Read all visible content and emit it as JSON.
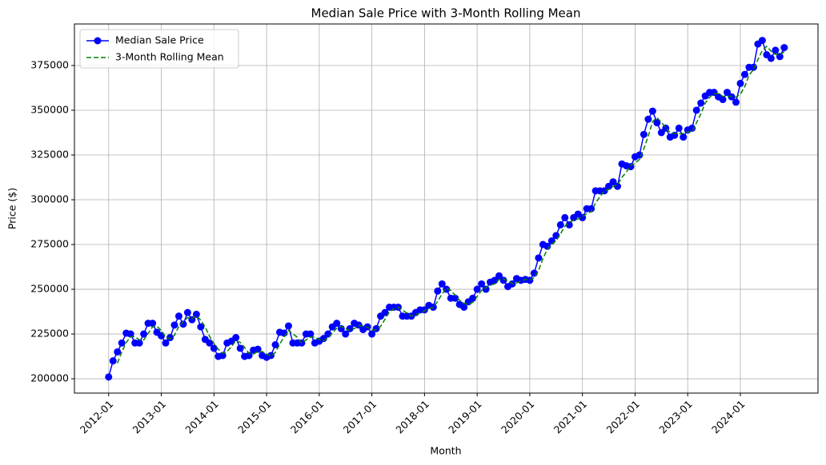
{
  "chart_data": {
    "type": "line",
    "title": "Median Sale Price with 3-Month Rolling Mean",
    "x_label": "Month",
    "y_label": "Price ($)",
    "x": [
      "2012-01",
      "2012-02",
      "2012-03",
      "2012-04",
      "2012-05",
      "2012-06",
      "2012-07",
      "2012-08",
      "2012-09",
      "2012-10",
      "2012-11",
      "2012-12",
      "2013-01",
      "2013-02",
      "2013-03",
      "2013-04",
      "2013-05",
      "2013-06",
      "2013-07",
      "2013-08",
      "2013-09",
      "2013-10",
      "2013-11",
      "2013-12",
      "2014-01",
      "2014-02",
      "2014-03",
      "2014-04",
      "2014-05",
      "2014-06",
      "2014-07",
      "2014-08",
      "2014-09",
      "2014-10",
      "2014-11",
      "2014-12",
      "2015-01",
      "2015-02",
      "2015-03",
      "2015-04",
      "2015-05",
      "2015-06",
      "2015-07",
      "2015-08",
      "2015-09",
      "2015-10",
      "2015-11",
      "2015-12",
      "2016-01",
      "2016-02",
      "2016-03",
      "2016-04",
      "2016-05",
      "2016-06",
      "2016-07",
      "2016-08",
      "2016-09",
      "2016-10",
      "2016-11",
      "2016-12",
      "2017-01",
      "2017-02",
      "2017-03",
      "2017-04",
      "2017-05",
      "2017-06",
      "2017-07",
      "2017-08",
      "2017-09",
      "2017-10",
      "2017-11",
      "2017-12",
      "2018-01",
      "2018-02",
      "2018-03",
      "2018-04",
      "2018-05",
      "2018-06",
      "2018-07",
      "2018-08",
      "2018-09",
      "2018-10",
      "2018-11",
      "2018-12",
      "2019-01",
      "2019-02",
      "2019-03",
      "2019-04",
      "2019-05",
      "2019-06",
      "2019-07",
      "2019-08",
      "2019-09",
      "2019-10",
      "2019-11",
      "2019-12",
      "2020-01",
      "2020-02",
      "2020-03",
      "2020-04",
      "2020-05",
      "2020-06",
      "2020-07",
      "2020-08",
      "2020-09",
      "2020-10",
      "2020-11",
      "2020-12",
      "2021-01",
      "2021-02",
      "2021-03",
      "2021-04",
      "2021-05",
      "2021-06",
      "2021-07",
      "2021-08",
      "2021-09",
      "2021-10",
      "2021-11",
      "2021-12",
      "2022-01",
      "2022-02",
      "2022-03",
      "2022-04",
      "2022-05",
      "2022-06",
      "2022-07",
      "2022-08",
      "2022-09",
      "2022-10",
      "2022-11",
      "2022-12",
      "2023-01",
      "2023-02",
      "2023-03",
      "2023-04",
      "2023-05",
      "2023-06",
      "2023-07",
      "2023-08",
      "2023-09",
      "2023-10",
      "2023-11",
      "2023-12",
      "2024-01",
      "2024-02",
      "2024-03",
      "2024-04",
      "2024-05",
      "2024-06",
      "2024-07",
      "2024-08",
      "2024-09",
      "2024-10",
      "2024-11"
    ],
    "series": [
      {
        "name": "Median Sale Price",
        "color": "#0000ff",
        "style": "solid",
        "marker": true,
        "values": [
          201000,
          210000,
          215000,
          220000,
          225500,
          225000,
          220000,
          220000,
          225000,
          231000,
          231000,
          226000,
          224000,
          220000,
          223000,
          230000,
          235000,
          230500,
          237000,
          233000,
          236000,
          229000,
          222000,
          220000,
          217000,
          212500,
          213000,
          220000,
          221000,
          223000,
          217000,
          212500,
          213000,
          216000,
          216500,
          213000,
          212000,
          213000,
          219000,
          226000,
          225500,
          229500,
          220000,
          220000,
          220000,
          225000,
          225000,
          220000,
          221000,
          222500,
          225000,
          229000,
          231000,
          228000,
          225000,
          228000,
          231000,
          230000,
          227500,
          229000,
          225000,
          228000,
          235000,
          237000,
          240000,
          240000,
          240000,
          235000,
          235000,
          235000,
          237000,
          238500,
          238500,
          241000,
          240000,
          249000,
          253000,
          250000,
          245000,
          245000,
          241500,
          240000,
          243000,
          245000,
          250000,
          253000,
          250000,
          254000,
          255000,
          257500,
          255000,
          251500,
          253000,
          256000,
          255000,
          255500,
          255000,
          259000,
          267500,
          275000,
          274000,
          277000,
          280000,
          286000,
          290000,
          286000,
          290000,
          292000,
          290000,
          295000,
          295000,
          305000,
          305000,
          305000,
          307500,
          310000,
          307500,
          320000,
          319000,
          318500,
          324000,
          325000,
          336500,
          345000,
          349500,
          343000,
          337500,
          340000,
          335000,
          336000,
          340000,
          335000,
          339000,
          340000,
          350000,
          354000,
          358000,
          360000,
          360000,
          357500,
          356000,
          360000,
          357500,
          354500,
          365000,
          370000,
          374000,
          374000,
          387000,
          389000,
          381000,
          379000,
          383500,
          380000,
          385000
        ]
      },
      {
        "name": "3-Month Rolling Mean",
        "color": "#008000",
        "style": "dashed",
        "marker": false,
        "values": [
          null,
          null,
          208700,
          215000,
          220200,
          223500,
          223500,
          221700,
          221700,
          225300,
          229000,
          229300,
          227000,
          223300,
          222300,
          224300,
          229300,
          231800,
          234200,
          233500,
          235300,
          232700,
          229000,
          223700,
          219700,
          216500,
          214200,
          215200,
          218000,
          221300,
          220300,
          217500,
          214200,
          213800,
          215200,
          215200,
          213800,
          212700,
          214700,
          219300,
          223500,
          227000,
          225000,
          223200,
          220000,
          221700,
          223300,
          223300,
          222000,
          221200,
          222800,
          225500,
          228300,
          229300,
          228000,
          227000,
          228000,
          229700,
          229500,
          228800,
          227200,
          227300,
          229300,
          233300,
          237300,
          239000,
          240000,
          238300,
          236700,
          235000,
          235700,
          236800,
          238000,
          239300,
          239800,
          243300,
          247300,
          250700,
          249300,
          246700,
          243800,
          242200,
          241500,
          242700,
          246000,
          249300,
          251000,
          252300,
          253000,
          255500,
          255800,
          254700,
          253200,
          253500,
          254700,
          255500,
          255200,
          256500,
          260500,
          267200,
          272200,
          275300,
          277000,
          281000,
          285300,
          287300,
          288700,
          289300,
          290700,
          292300,
          293300,
          298300,
          301700,
          305000,
          305800,
          307500,
          308300,
          312500,
          315500,
          319200,
          320500,
          322500,
          328500,
          335500,
          343700,
          345800,
          343300,
          340200,
          337500,
          337000,
          337000,
          337000,
          338000,
          338000,
          343000,
          348000,
          354000,
          357300,
          359300,
          359200,
          357800,
          357800,
          357800,
          357300,
          359000,
          363200,
          369700,
          372700,
          378300,
          383300,
          385700,
          383000,
          381200,
          380800,
          382800
        ]
      }
    ],
    "xticks": [
      "2012-01",
      "2013-01",
      "2014-01",
      "2015-01",
      "2016-01",
      "2017-01",
      "2018-01",
      "2019-01",
      "2020-01",
      "2021-01",
      "2022-01",
      "2023-01",
      "2024-01"
    ],
    "ylim": [
      192000,
      398200
    ],
    "yticks": [
      200000,
      225000,
      250000,
      275000,
      300000,
      325000,
      350000,
      375000
    ],
    "grid": true,
    "legend": "upper left"
  }
}
